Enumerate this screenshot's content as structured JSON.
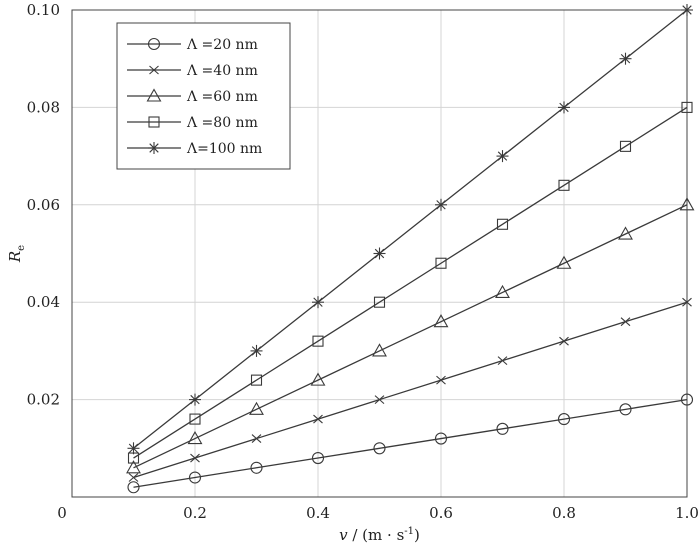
{
  "chart_data": {
    "type": "line",
    "title": "",
    "xlabel": "v / (m · s⁻¹)",
    "xlabel_parts": {
      "var": "v",
      "rest": " / (m · s",
      "sup": "-1",
      "close": ")"
    },
    "ylabel": "Re",
    "ylabel_parts": {
      "main": "R",
      "sub": "e"
    },
    "xlim": [
      0,
      1.0
    ],
    "ylim": [
      0,
      0.1
    ],
    "grid": true,
    "legend_position": "top-left",
    "x_ticks": [
      {
        "value": 0,
        "label": "0"
      },
      {
        "value": 0.2,
        "label": "0.2"
      },
      {
        "value": 0.4,
        "label": "0.4"
      },
      {
        "value": 0.6,
        "label": "0.6"
      },
      {
        "value": 0.8,
        "label": "0.8"
      },
      {
        "value": 1.0,
        "label": "1.0"
      }
    ],
    "y_ticks": [
      {
        "value": 0.02,
        "label": "0.02"
      },
      {
        "value": 0.04,
        "label": "0.04"
      },
      {
        "value": 0.06,
        "label": "0.06"
      },
      {
        "value": 0.08,
        "label": "0.08"
      },
      {
        "value": 0.1,
        "label": "0.10"
      }
    ],
    "x": [
      0.1,
      0.2,
      0.3,
      0.4,
      0.5,
      0.6,
      0.7,
      0.8,
      0.9,
      1.0
    ],
    "series": [
      {
        "name": "Λ =20 nm",
        "marker": "circle",
        "values": [
          0.002,
          0.004,
          0.006,
          0.008,
          0.01,
          0.012,
          0.014,
          0.016,
          0.018,
          0.02
        ]
      },
      {
        "name": "Λ =40 nm",
        "marker": "x",
        "values": [
          0.004,
          0.008,
          0.012,
          0.016,
          0.02,
          0.024,
          0.028,
          0.032,
          0.036,
          0.04
        ]
      },
      {
        "name": "Λ =60 nm",
        "marker": "triangle",
        "values": [
          0.006,
          0.012,
          0.018,
          0.024,
          0.03,
          0.036,
          0.042,
          0.048,
          0.054,
          0.06
        ]
      },
      {
        "name": "Λ =80 nm",
        "marker": "square",
        "values": [
          0.008,
          0.016,
          0.024,
          0.032,
          0.04,
          0.048,
          0.056,
          0.064,
          0.072,
          0.08
        ]
      },
      {
        "name": "Λ=100 nm",
        "marker": "star",
        "values": [
          0.01,
          0.02,
          0.03,
          0.04,
          0.05,
          0.06,
          0.07,
          0.08,
          0.09,
          0.1
        ]
      }
    ],
    "line_color": "#3a3a3a",
    "grid_color": "#d4d4d4"
  }
}
